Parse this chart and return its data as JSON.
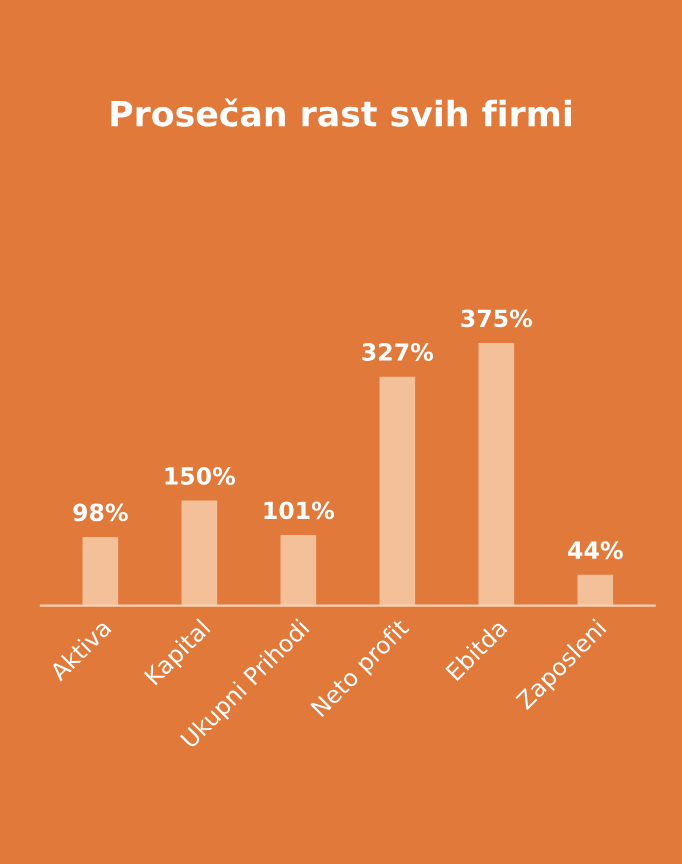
{
  "chart_data": {
    "type": "bar",
    "title": "Prosečan rast svih firmi",
    "categories": [
      "Aktiva",
      "Kapital",
      "Ukupni Prihodi",
      "Neto profit",
      "Ebitda",
      "Zaposleni"
    ],
    "values": [
      98,
      150,
      101,
      327,
      375,
      44
    ],
    "value_labels": [
      "98%",
      "150%",
      "101%",
      "327%",
      "375%",
      "44%"
    ],
    "color": "#f3c09a",
    "grid": false,
    "legend": false
  }
}
